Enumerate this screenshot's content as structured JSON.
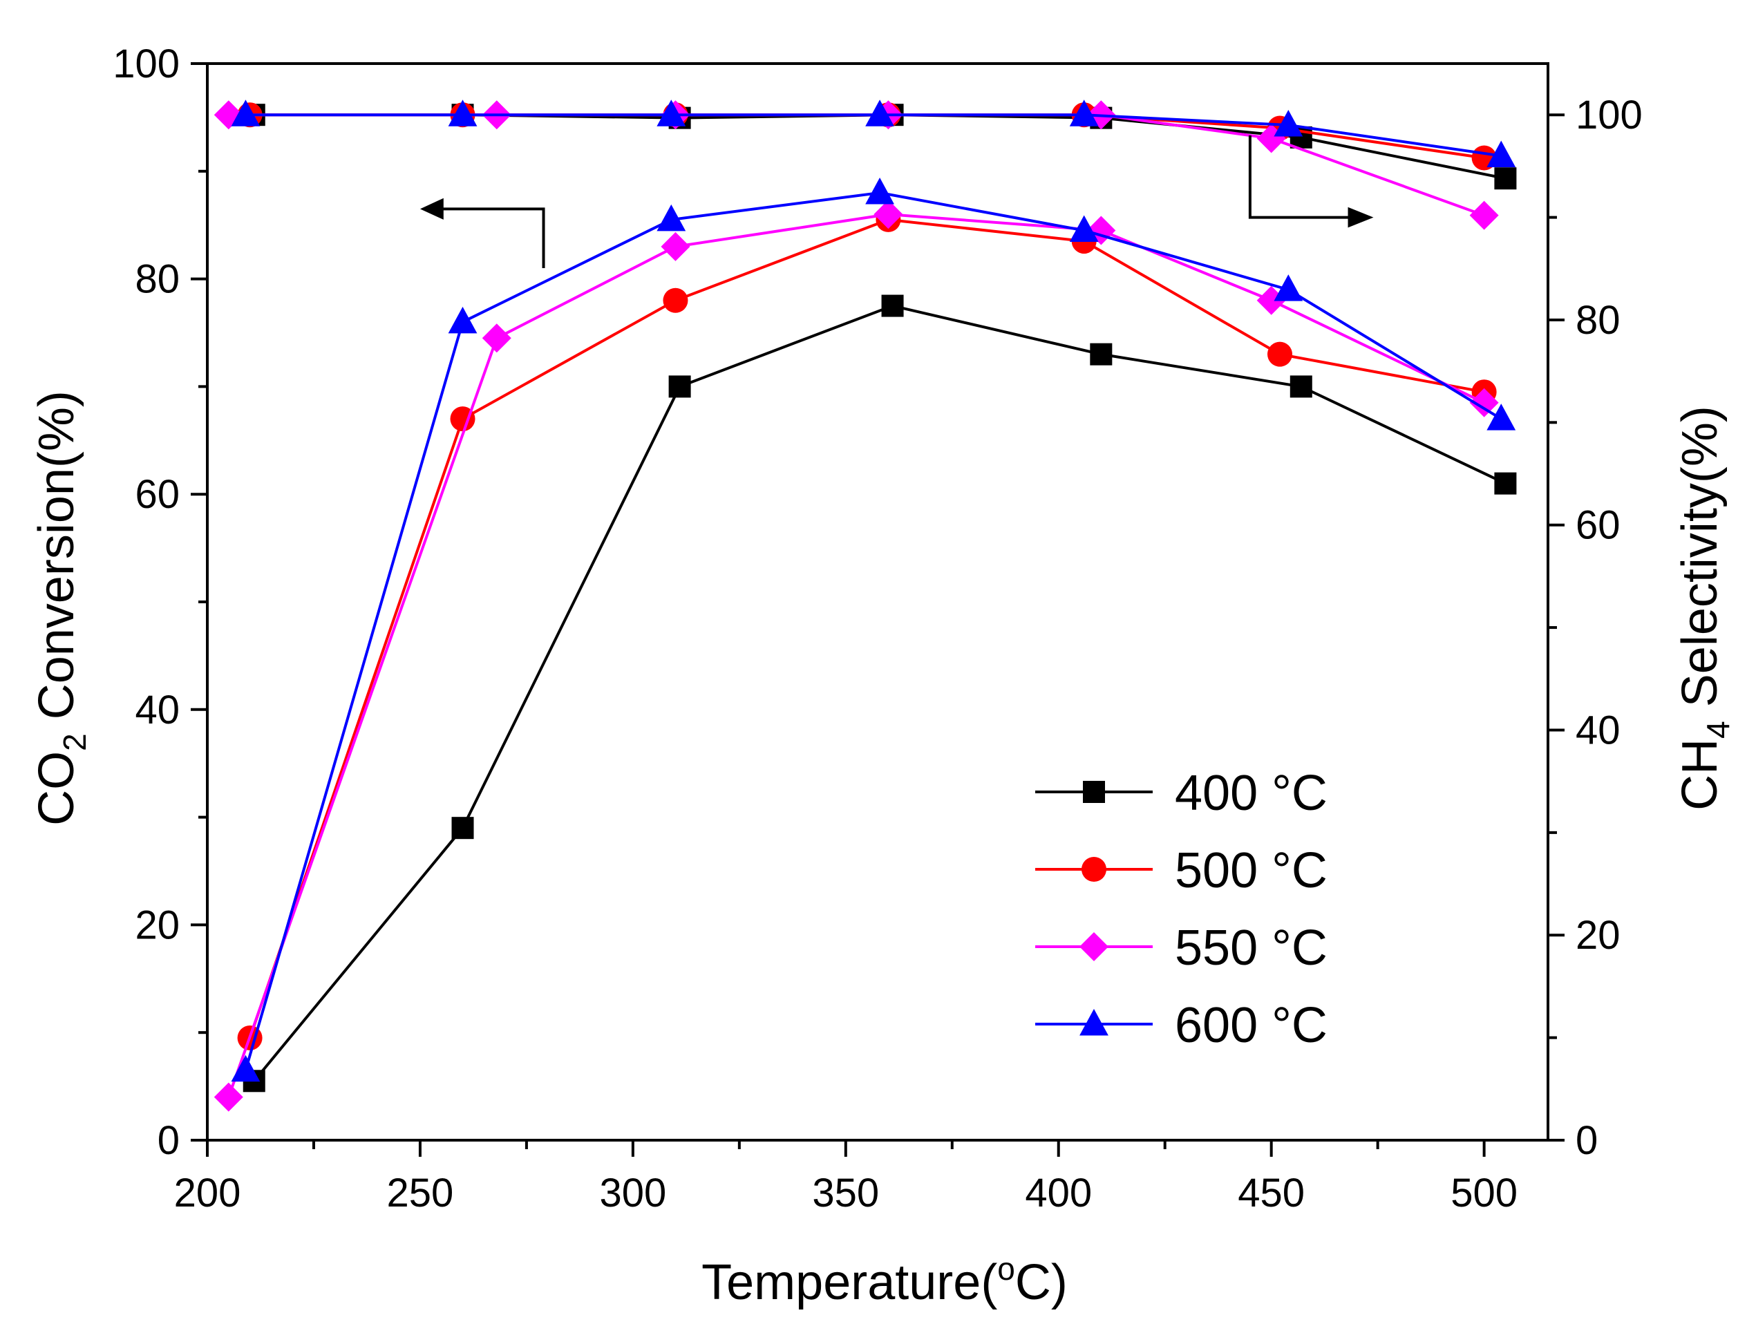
{
  "chart_data": {
    "type": "line",
    "title": "",
    "xlabel": "Temperature(°C)",
    "ylabel_left": "CO₂ Conversion(%)",
    "ylabel_right": "CH₄ Selectivity(%)",
    "xlim": [
      200,
      515
    ],
    "ylim_left": [
      0,
      100
    ],
    "ylim_right": [
      0,
      105
    ],
    "x_ticks": [
      200,
      250,
      300,
      350,
      400,
      450,
      500
    ],
    "y_left_ticks": [
      0,
      20,
      40,
      60,
      80,
      100
    ],
    "y_right_ticks": [
      0,
      20,
      40,
      60,
      80,
      100
    ],
    "grid": false,
    "legend_position": "center-right",
    "series": [
      {
        "name": "400 °C",
        "color": "#000000",
        "marker": "square",
        "conversion": {
          "x": [
            211,
            260,
            311,
            361,
            410,
            457,
            505
          ],
          "y": [
            5.5,
            29,
            70,
            77.5,
            73,
            70,
            61
          ]
        },
        "selectivity": {
          "x": [
            211,
            260,
            311,
            361,
            410,
            457,
            505
          ],
          "y": [
            100,
            100,
            99.7,
            100,
            99.7,
            97.8,
            93.8
          ]
        }
      },
      {
        "name": "500 °C",
        "color": "#ff0000",
        "marker": "circle",
        "conversion": {
          "x": [
            210,
            260,
            310,
            360,
            406,
            452,
            500
          ],
          "y": [
            9.5,
            67,
            78,
            85.5,
            83.5,
            73,
            69.5
          ]
        },
        "selectivity": {
          "x": [
            210,
            260,
            310,
            360,
            406,
            452,
            500
          ],
          "y": [
            100,
            100,
            100,
            100,
            100,
            98.7,
            95.8
          ]
        }
      },
      {
        "name": "550 °C",
        "color": "#ff00ff",
        "marker": "diamond",
        "conversion": {
          "x": [
            205,
            268,
            310,
            360,
            410,
            450,
            500
          ],
          "y": [
            4,
            74.5,
            83,
            86,
            84.5,
            78,
            68.5
          ]
        },
        "selectivity": {
          "x": [
            205,
            268,
            310,
            360,
            410,
            450,
            500
          ],
          "y": [
            100,
            100,
            100,
            100,
            100,
            97.7,
            90.2
          ]
        }
      },
      {
        "name": "600 °C",
        "color": "#0000ff",
        "marker": "triangle",
        "conversion": {
          "x": [
            209,
            260,
            309,
            358,
            406,
            454,
            504
          ],
          "y": [
            6.5,
            76,
            85.5,
            88,
            84.5,
            79,
            67
          ]
        },
        "selectivity": {
          "x": [
            209,
            260,
            309,
            358,
            406,
            454,
            504
          ],
          "y": [
            100,
            100,
            100,
            100,
            100,
            99,
            96
          ]
        }
      }
    ],
    "annotations": [
      {
        "type": "arrow",
        "direction": "left",
        "meaning": "conversion curves read on left axis"
      },
      {
        "type": "arrow",
        "direction": "right",
        "meaning": "selectivity curves read on right axis"
      }
    ]
  }
}
